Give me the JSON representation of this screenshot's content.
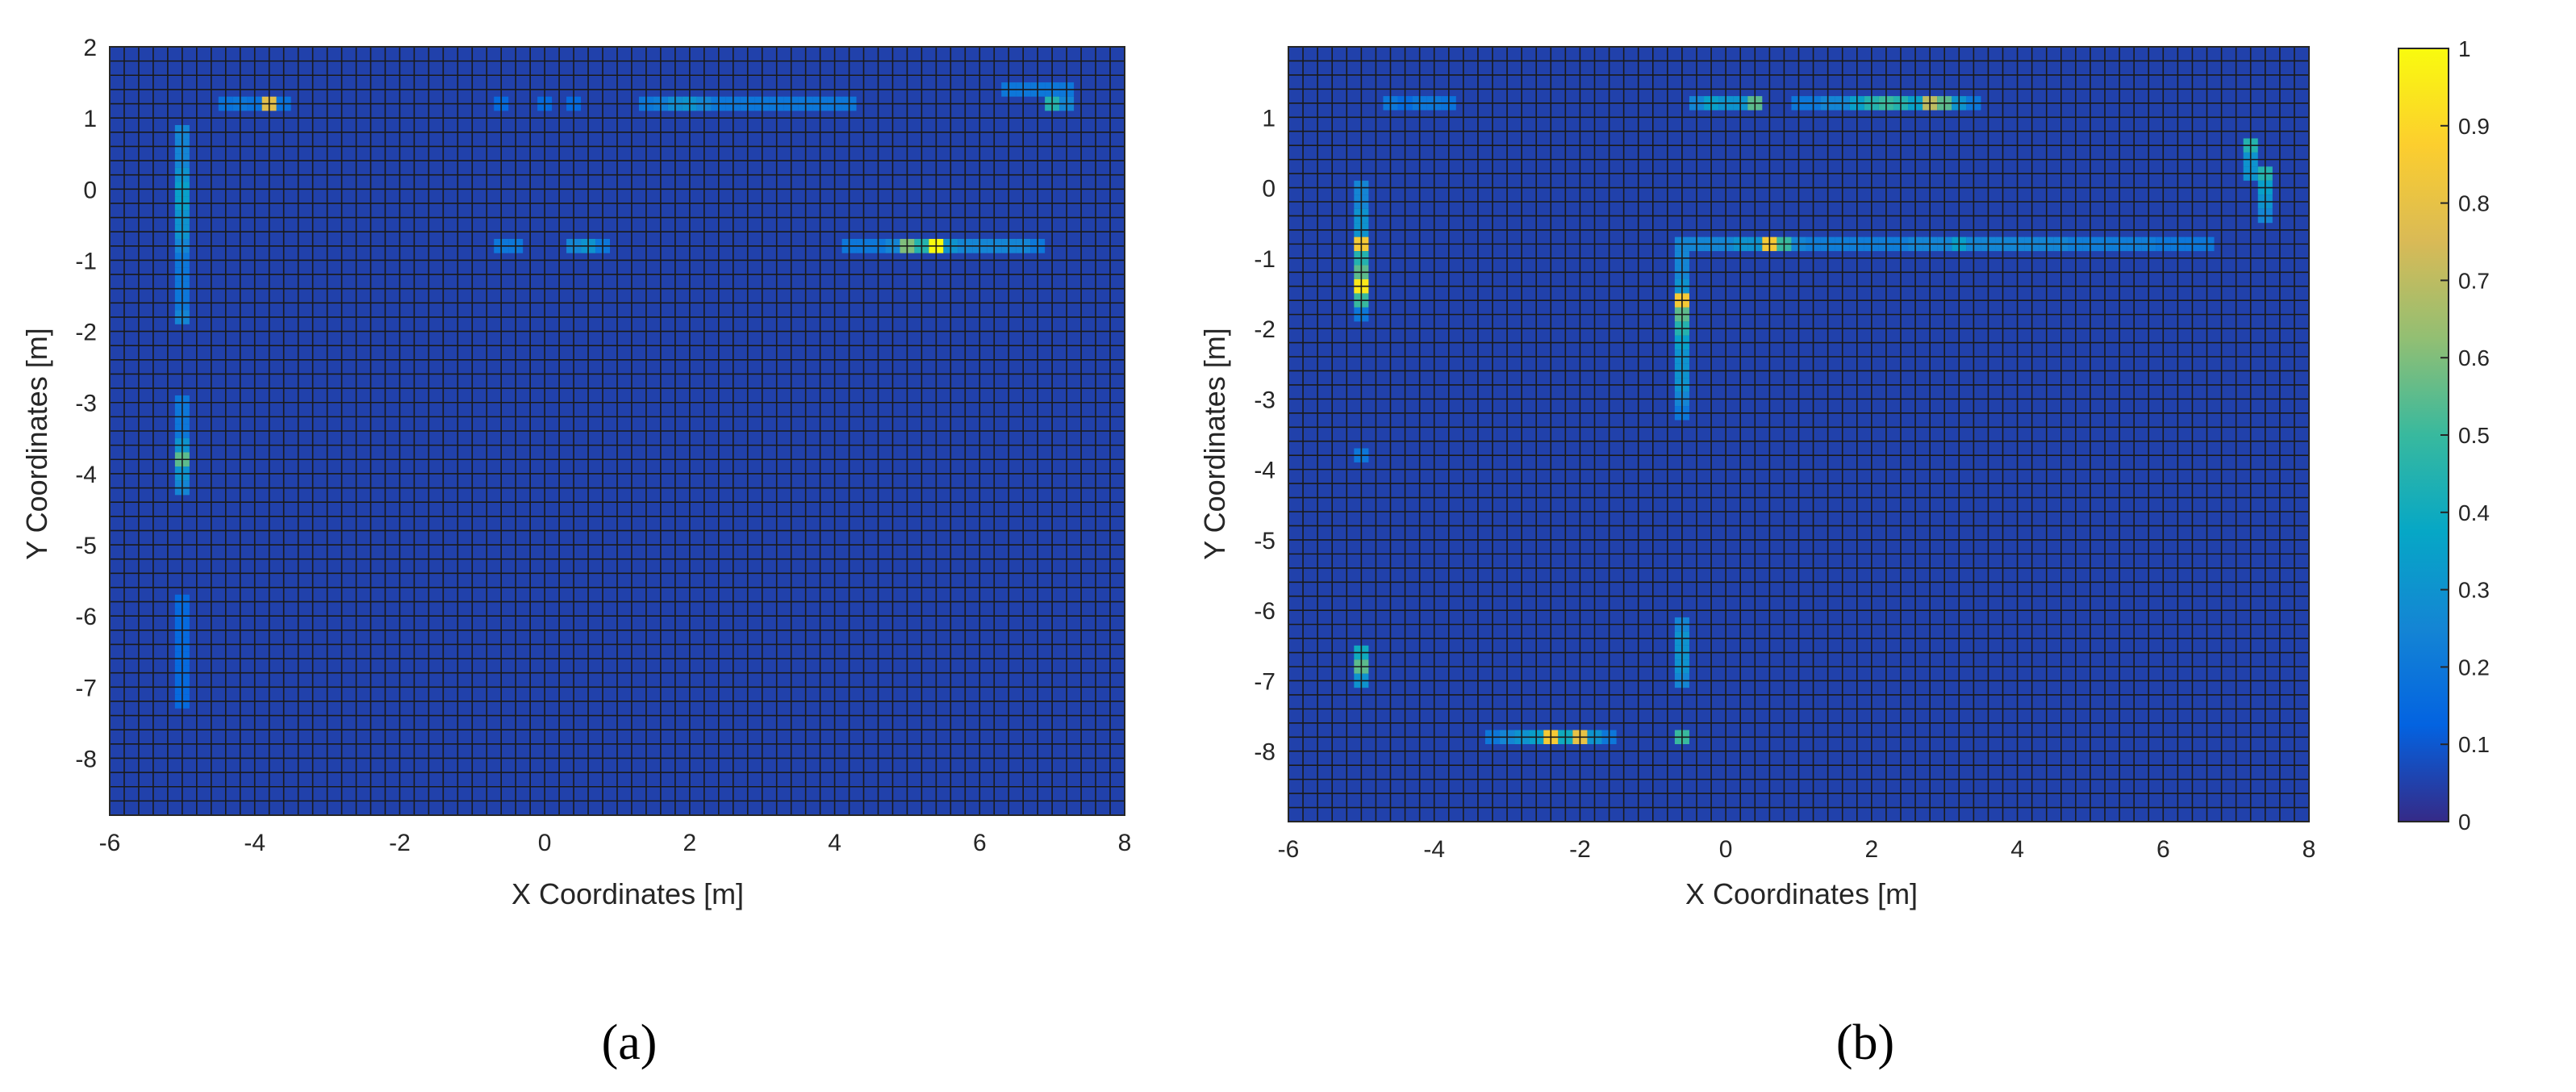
{
  "chart_data": [
    {
      "panel_label": "(a)",
      "type": "heatmap",
      "xlabel": "X Coordinates [m]",
      "ylabel": "Y Coordinates [m]",
      "xlim": [
        -6,
        8
      ],
      "ylim": [
        -8.8,
        2
      ],
      "xticks": [
        "-6",
        "-4",
        "-2",
        "0",
        "2",
        "4",
        "6",
        "8"
      ],
      "yticks": [
        "2",
        "1",
        "0",
        "-1",
        "-2",
        "-3",
        "-4",
        "-5",
        "-6",
        "-7",
        "-8"
      ],
      "cell_size": 0.2,
      "background_value": 0.05,
      "cells": [
        {
          "x": -4.4,
          "y": 1.2,
          "v": 0.18
        },
        {
          "x": -4.2,
          "y": 1.2,
          "v": 0.2
        },
        {
          "x": -4.0,
          "y": 1.2,
          "v": 0.18
        },
        {
          "x": -3.8,
          "y": 1.2,
          "v": 0.78
        },
        {
          "x": -3.6,
          "y": 1.2,
          "v": 0.18
        },
        {
          "x": -0.6,
          "y": 1.2,
          "v": 0.15
        },
        {
          "x": 0.0,
          "y": 1.2,
          "v": 0.15
        },
        {
          "x": 0.4,
          "y": 1.2,
          "v": 0.15
        },
        {
          "x": 1.4,
          "y": 1.2,
          "v": 0.2
        },
        {
          "x": 1.6,
          "y": 1.2,
          "v": 0.22
        },
        {
          "x": 1.8,
          "y": 1.2,
          "v": 0.28
        },
        {
          "x": 2.0,
          "y": 1.2,
          "v": 0.3
        },
        {
          "x": 2.2,
          "y": 1.2,
          "v": 0.25
        },
        {
          "x": 2.4,
          "y": 1.2,
          "v": 0.2
        },
        {
          "x": 2.6,
          "y": 1.2,
          "v": 0.2
        },
        {
          "x": 2.8,
          "y": 1.2,
          "v": 0.2
        },
        {
          "x": 3.0,
          "y": 1.2,
          "v": 0.2
        },
        {
          "x": 3.2,
          "y": 1.2,
          "v": 0.2
        },
        {
          "x": 3.4,
          "y": 1.2,
          "v": 0.2
        },
        {
          "x": 3.6,
          "y": 1.2,
          "v": 0.2
        },
        {
          "x": 3.8,
          "y": 1.2,
          "v": 0.2
        },
        {
          "x": 4.0,
          "y": 1.2,
          "v": 0.2
        },
        {
          "x": 4.2,
          "y": 1.2,
          "v": 0.2
        },
        {
          "x": 6.4,
          "y": 1.4,
          "v": 0.2
        },
        {
          "x": 6.6,
          "y": 1.4,
          "v": 0.2
        },
        {
          "x": 6.8,
          "y": 1.4,
          "v": 0.2
        },
        {
          "x": 7.0,
          "y": 1.4,
          "v": 0.2
        },
        {
          "x": 7.2,
          "y": 1.4,
          "v": 0.2
        },
        {
          "x": 7.0,
          "y": 1.2,
          "v": 0.45
        },
        {
          "x": 7.2,
          "y": 1.2,
          "v": 0.25
        },
        {
          "x": -5.0,
          "y": 0.8,
          "v": 0.25
        },
        {
          "x": -5.0,
          "y": 0.6,
          "v": 0.25
        },
        {
          "x": -5.0,
          "y": 0.4,
          "v": 0.25
        },
        {
          "x": -5.0,
          "y": 0.2,
          "v": 0.3
        },
        {
          "x": -5.0,
          "y": 0.0,
          "v": 0.35
        },
        {
          "x": -5.0,
          "y": -0.2,
          "v": 0.35
        },
        {
          "x": -5.0,
          "y": -0.4,
          "v": 0.3
        },
        {
          "x": -5.0,
          "y": -0.6,
          "v": 0.3
        },
        {
          "x": -5.0,
          "y": -0.8,
          "v": 0.25
        },
        {
          "x": -5.0,
          "y": -1.0,
          "v": 0.2
        },
        {
          "x": -5.0,
          "y": -1.2,
          "v": 0.2
        },
        {
          "x": -5.0,
          "y": -1.4,
          "v": 0.2
        },
        {
          "x": -5.0,
          "y": -1.6,
          "v": 0.2
        },
        {
          "x": -5.0,
          "y": -1.8,
          "v": 0.25
        },
        {
          "x": -5.0,
          "y": -3.0,
          "v": 0.2
        },
        {
          "x": -5.0,
          "y": -3.2,
          "v": 0.2
        },
        {
          "x": -5.0,
          "y": -3.4,
          "v": 0.2
        },
        {
          "x": -5.0,
          "y": -3.6,
          "v": 0.3
        },
        {
          "x": -5.0,
          "y": -3.8,
          "v": 0.55
        },
        {
          "x": -5.0,
          "y": -4.0,
          "v": 0.3
        },
        {
          "x": -5.0,
          "y": -4.2,
          "v": 0.25
        },
        {
          "x": -5.0,
          "y": -5.8,
          "v": 0.15
        },
        {
          "x": -5.0,
          "y": -6.0,
          "v": 0.15
        },
        {
          "x": -5.0,
          "y": -6.2,
          "v": 0.15
        },
        {
          "x": -5.0,
          "y": -6.4,
          "v": 0.15
        },
        {
          "x": -5.0,
          "y": -6.6,
          "v": 0.15
        },
        {
          "x": -5.0,
          "y": -6.8,
          "v": 0.15
        },
        {
          "x": -5.0,
          "y": -7.0,
          "v": 0.15
        },
        {
          "x": -5.0,
          "y": -7.2,
          "v": 0.15
        },
        {
          "x": -0.6,
          "y": -0.8,
          "v": 0.2
        },
        {
          "x": -0.4,
          "y": -0.8,
          "v": 0.2
        },
        {
          "x": 0.4,
          "y": -0.8,
          "v": 0.25
        },
        {
          "x": 0.6,
          "y": -0.8,
          "v": 0.3
        },
        {
          "x": 0.8,
          "y": -0.8,
          "v": 0.2
        },
        {
          "x": 4.2,
          "y": -0.8,
          "v": 0.2
        },
        {
          "x": 4.4,
          "y": -0.8,
          "v": 0.2
        },
        {
          "x": 4.6,
          "y": -0.8,
          "v": 0.2
        },
        {
          "x": 4.8,
          "y": -0.8,
          "v": 0.25
        },
        {
          "x": 5.0,
          "y": -0.8,
          "v": 0.6
        },
        {
          "x": 5.2,
          "y": -0.8,
          "v": 0.45
        },
        {
          "x": 5.4,
          "y": -0.8,
          "v": 1.0
        },
        {
          "x": 5.6,
          "y": -0.8,
          "v": 0.3
        },
        {
          "x": 5.8,
          "y": -0.8,
          "v": 0.25
        },
        {
          "x": 6.0,
          "y": -0.8,
          "v": 0.25
        },
        {
          "x": 6.2,
          "y": -0.8,
          "v": 0.25
        },
        {
          "x": 6.4,
          "y": -0.8,
          "v": 0.25
        },
        {
          "x": 6.6,
          "y": -0.8,
          "v": 0.25
        },
        {
          "x": 6.8,
          "y": -0.8,
          "v": 0.2
        }
      ]
    },
    {
      "panel_label": "(b)",
      "type": "heatmap",
      "xlabel": "X Coordinates [m]",
      "ylabel": "Y Coordinates [m]",
      "xlim": [
        -6,
        8
      ],
      "ylim": [
        -9,
        2
      ],
      "xticks": [
        "-6",
        "-4",
        "-2",
        "0",
        "2",
        "4",
        "6",
        "8"
      ],
      "yticks": [
        "1",
        "0",
        "-1",
        "-2",
        "-3",
        "-4",
        "-5",
        "-6",
        "-7",
        "-8"
      ],
      "cell_size": 0.2,
      "background_value": 0.05,
      "cells": [
        {
          "x": -4.6,
          "y": 1.2,
          "v": 0.2
        },
        {
          "x": -4.4,
          "y": 1.2,
          "v": 0.15
        },
        {
          "x": -4.2,
          "y": 1.2,
          "v": 0.2
        },
        {
          "x": -4.0,
          "y": 1.2,
          "v": 0.2
        },
        {
          "x": -3.8,
          "y": 1.2,
          "v": 0.18
        },
        {
          "x": -0.4,
          "y": 1.2,
          "v": 0.25
        },
        {
          "x": -0.2,
          "y": 1.2,
          "v": 0.35
        },
        {
          "x": 0.0,
          "y": 1.2,
          "v": 0.3
        },
        {
          "x": 0.2,
          "y": 1.2,
          "v": 0.3
        },
        {
          "x": 0.4,
          "y": 1.2,
          "v": 0.55
        },
        {
          "x": 1.0,
          "y": 1.2,
          "v": 0.2
        },
        {
          "x": 1.2,
          "y": 1.2,
          "v": 0.2
        },
        {
          "x": 1.4,
          "y": 1.2,
          "v": 0.25
        },
        {
          "x": 1.6,
          "y": 1.2,
          "v": 0.25
        },
        {
          "x": 1.8,
          "y": 1.2,
          "v": 0.35
        },
        {
          "x": 2.0,
          "y": 1.2,
          "v": 0.45
        },
        {
          "x": 2.2,
          "y": 1.2,
          "v": 0.5
        },
        {
          "x": 2.4,
          "y": 1.2,
          "v": 0.45
        },
        {
          "x": 2.6,
          "y": 1.2,
          "v": 0.35
        },
        {
          "x": 2.8,
          "y": 1.2,
          "v": 0.7
        },
        {
          "x": 3.0,
          "y": 1.2,
          "v": 0.55
        },
        {
          "x": 3.2,
          "y": 1.2,
          "v": 0.3
        },
        {
          "x": 3.4,
          "y": 1.2,
          "v": 0.2
        },
        {
          "x": 7.2,
          "y": 0.6,
          "v": 0.45
        },
        {
          "x": 7.2,
          "y": 0.4,
          "v": 0.3
        },
        {
          "x": 7.2,
          "y": 0.2,
          "v": 0.3
        },
        {
          "x": 7.4,
          "y": 0.2,
          "v": 0.45
        },
        {
          "x": 7.4,
          "y": 0.0,
          "v": 0.35
        },
        {
          "x": 7.4,
          "y": -0.2,
          "v": 0.3
        },
        {
          "x": 7.4,
          "y": -0.4,
          "v": 0.25
        },
        {
          "x": -5.0,
          "y": 0.0,
          "v": 0.25
        },
        {
          "x": -5.0,
          "y": -0.2,
          "v": 0.25
        },
        {
          "x": -5.0,
          "y": -0.4,
          "v": 0.3
        },
        {
          "x": -5.0,
          "y": -0.6,
          "v": 0.3
        },
        {
          "x": -5.0,
          "y": -0.8,
          "v": 0.85
        },
        {
          "x": -5.0,
          "y": -1.0,
          "v": 0.45
        },
        {
          "x": -5.0,
          "y": -1.2,
          "v": 0.55
        },
        {
          "x": -5.0,
          "y": -1.4,
          "v": 0.95
        },
        {
          "x": -5.0,
          "y": -1.6,
          "v": 0.5
        },
        {
          "x": -5.0,
          "y": -1.8,
          "v": 0.2
        },
        {
          "x": -5.0,
          "y": -3.8,
          "v": 0.2
        },
        {
          "x": -5.0,
          "y": -6.6,
          "v": 0.4
        },
        {
          "x": -5.0,
          "y": -6.8,
          "v": 0.55
        },
        {
          "x": -5.0,
          "y": -7.0,
          "v": 0.3
        },
        {
          "x": -0.4,
          "y": -0.8,
          "v": 0.25
        },
        {
          "x": -0.2,
          "y": -0.8,
          "v": 0.25
        },
        {
          "x": 0.0,
          "y": -0.8,
          "v": 0.25
        },
        {
          "x": 0.2,
          "y": -0.8,
          "v": 0.3
        },
        {
          "x": 0.4,
          "y": -0.8,
          "v": 0.3
        },
        {
          "x": 0.6,
          "y": -0.8,
          "v": 0.85
        },
        {
          "x": 0.8,
          "y": -0.8,
          "v": 0.5
        },
        {
          "x": 1.0,
          "y": -0.8,
          "v": 0.25
        },
        {
          "x": 1.2,
          "y": -0.8,
          "v": 0.22
        },
        {
          "x": 1.4,
          "y": -0.8,
          "v": 0.22
        },
        {
          "x": 1.6,
          "y": -0.8,
          "v": 0.22
        },
        {
          "x": 1.8,
          "y": -0.8,
          "v": 0.22
        },
        {
          "x": 2.0,
          "y": -0.8,
          "v": 0.22
        },
        {
          "x": 2.2,
          "y": -0.8,
          "v": 0.22
        },
        {
          "x": 2.4,
          "y": -0.8,
          "v": 0.22
        },
        {
          "x": 2.6,
          "y": -0.8,
          "v": 0.25
        },
        {
          "x": 2.8,
          "y": -0.8,
          "v": 0.25
        },
        {
          "x": 3.0,
          "y": -0.8,
          "v": 0.25
        },
        {
          "x": 3.2,
          "y": -0.8,
          "v": 0.35
        },
        {
          "x": 3.4,
          "y": -0.8,
          "v": 0.25
        },
        {
          "x": 3.6,
          "y": -0.8,
          "v": 0.25
        },
        {
          "x": 3.8,
          "y": -0.8,
          "v": 0.25
        },
        {
          "x": 4.0,
          "y": -0.8,
          "v": 0.25
        },
        {
          "x": 4.2,
          "y": -0.8,
          "v": 0.25
        },
        {
          "x": 4.4,
          "y": -0.8,
          "v": 0.25
        },
        {
          "x": 4.6,
          "y": -0.8,
          "v": 0.25
        },
        {
          "x": 4.8,
          "y": -0.8,
          "v": 0.22
        },
        {
          "x": 5.0,
          "y": -0.8,
          "v": 0.22
        },
        {
          "x": 5.2,
          "y": -0.8,
          "v": 0.22
        },
        {
          "x": 5.4,
          "y": -0.8,
          "v": 0.22
        },
        {
          "x": 5.6,
          "y": -0.8,
          "v": 0.22
        },
        {
          "x": 5.8,
          "y": -0.8,
          "v": 0.22
        },
        {
          "x": 6.0,
          "y": -0.8,
          "v": 0.2
        },
        {
          "x": 6.2,
          "y": -0.8,
          "v": 0.2
        },
        {
          "x": 6.4,
          "y": -0.8,
          "v": 0.2
        },
        {
          "x": 6.6,
          "y": -0.8,
          "v": 0.2
        },
        {
          "x": -0.6,
          "y": -0.8,
          "v": 0.25
        },
        {
          "x": -0.6,
          "y": -1.0,
          "v": 0.25
        },
        {
          "x": -0.6,
          "y": -1.2,
          "v": 0.25
        },
        {
          "x": -0.6,
          "y": -1.4,
          "v": 0.3
        },
        {
          "x": -0.6,
          "y": -1.6,
          "v": 0.85
        },
        {
          "x": -0.6,
          "y": -1.8,
          "v": 0.55
        },
        {
          "x": -0.6,
          "y": -2.0,
          "v": 0.45
        },
        {
          "x": -0.6,
          "y": -2.2,
          "v": 0.35
        },
        {
          "x": -0.6,
          "y": -2.4,
          "v": 0.3
        },
        {
          "x": -0.6,
          "y": -2.6,
          "v": 0.3
        },
        {
          "x": -0.6,
          "y": -2.8,
          "v": 0.3
        },
        {
          "x": -0.6,
          "y": -3.0,
          "v": 0.25
        },
        {
          "x": -0.6,
          "y": -3.2,
          "v": 0.2
        },
        {
          "x": -0.6,
          "y": -6.2,
          "v": 0.25
        },
        {
          "x": -0.6,
          "y": -6.4,
          "v": 0.3
        },
        {
          "x": -0.6,
          "y": -6.6,
          "v": 0.3
        },
        {
          "x": -0.6,
          "y": -6.8,
          "v": 0.3
        },
        {
          "x": -0.6,
          "y": -7.0,
          "v": 0.25
        },
        {
          "x": -0.6,
          "y": -7.8,
          "v": 0.5
        },
        {
          "x": -3.2,
          "y": -7.8,
          "v": 0.2
        },
        {
          "x": -3.0,
          "y": -7.8,
          "v": 0.25
        },
        {
          "x": -2.8,
          "y": -7.8,
          "v": 0.3
        },
        {
          "x": -2.6,
          "y": -7.8,
          "v": 0.35
        },
        {
          "x": -2.4,
          "y": -7.8,
          "v": 0.85
        },
        {
          "x": -2.2,
          "y": -7.8,
          "v": 0.4
        },
        {
          "x": -2.0,
          "y": -7.8,
          "v": 0.8
        },
        {
          "x": -1.8,
          "y": -7.8,
          "v": 0.3
        },
        {
          "x": -1.6,
          "y": -7.8,
          "v": 0.2
        }
      ]
    }
  ],
  "colorbar": {
    "colormap": "parula",
    "range": [
      0,
      1
    ],
    "ticks": [
      "1",
      "0.9",
      "0.8",
      "0.7",
      "0.6",
      "0.5",
      "0.4",
      "0.3",
      "0.2",
      "0.1",
      "0"
    ],
    "colors": [
      "#352a87",
      "#0363e1",
      "#1485d4",
      "#06a7c6",
      "#38b99e",
      "#92bf73",
      "#d9ba56",
      "#fcce2e",
      "#f9fb0e"
    ]
  }
}
